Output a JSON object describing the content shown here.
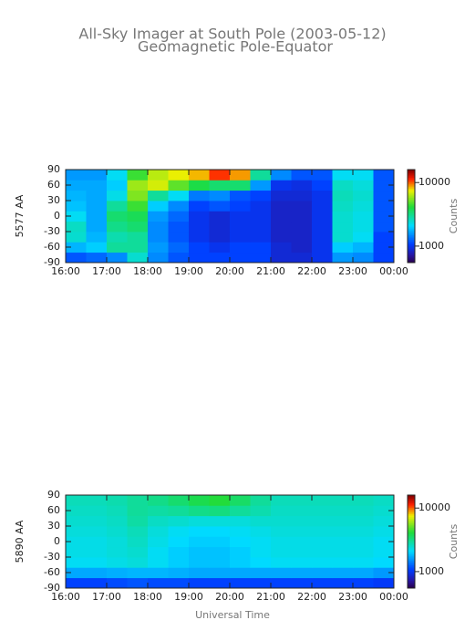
{
  "chart_data": [
    {
      "type": "heatmap",
      "title": "All-Sky Imager at South Pole (2003-05-12)",
      "subtitle": "Geomagnetic Pole-Equator",
      "ylabel": "5577 AA",
      "xlim": [
        16,
        24
      ],
      "ylim": [
        -90,
        90
      ],
      "xticks": [
        {
          "value": 16,
          "label": "16:00"
        },
        {
          "value": 17,
          "label": "17:00"
        },
        {
          "value": 18,
          "label": "18:00"
        },
        {
          "value": 19,
          "label": "19:00"
        },
        {
          "value": 20,
          "label": "20:00"
        },
        {
          "value": 21,
          "label": "21:00"
        },
        {
          "value": 22,
          "label": "22:00"
        },
        {
          "value": 23,
          "label": "23:00"
        },
        {
          "value": 24,
          "label": "00:00"
        }
      ],
      "yticks": [
        -90,
        -60,
        -30,
        0,
        30,
        60,
        90
      ],
      "xbins": [
        16,
        16.5,
        17,
        17.5,
        18,
        18.5,
        19,
        19.5,
        20,
        20.5,
        21,
        21.5,
        22,
        22.5,
        23,
        23.5,
        24
      ],
      "ybins": [
        -90,
        -70,
        -50,
        -30,
        -10,
        10,
        30,
        50,
        70,
        90
      ],
      "z": [
        [
          1200,
          1300,
          1500,
          2500,
          1500,
          1200,
          1100,
          1100,
          1100,
          1100,
          900,
          900,
          1000,
          1600,
          1500,
          1100
        ],
        [
          1800,
          2000,
          3000,
          3000,
          1600,
          1300,
          1100,
          1000,
          1100,
          1100,
          900,
          850,
          1000,
          2000,
          1800,
          1100
        ],
        [
          2500,
          1800,
          2800,
          3000,
          1500,
          1200,
          1000,
          900,
          1000,
          1000,
          850,
          850,
          1000,
          2500,
          2200,
          1100
        ],
        [
          2600,
          1700,
          3200,
          3500,
          1500,
          1200,
          1000,
          900,
          1000,
          1000,
          850,
          850,
          1000,
          2500,
          2300,
          1200
        ],
        [
          2200,
          1700,
          3500,
          3800,
          1600,
          1300,
          1000,
          900,
          1000,
          1000,
          850,
          850,
          1000,
          2500,
          2300,
          1200
        ],
        [
          1900,
          1700,
          3000,
          4500,
          2000,
          1500,
          1100,
          1200,
          1100,
          1000,
          850,
          850,
          1000,
          2600,
          2400,
          1200
        ],
        [
          1800,
          1700,
          2300,
          5500,
          3000,
          2200,
          1400,
          1500,
          1200,
          1100,
          900,
          900,
          1000,
          2700,
          2500,
          1200
        ],
        [
          1700,
          1700,
          2000,
          6000,
          7000,
          5000,
          4000,
          3500,
          3500,
          1600,
          1000,
          950,
          1100,
          2600,
          2400,
          1200
        ],
        [
          1600,
          1600,
          2200,
          4500,
          6500,
          7500,
          8500,
          11000,
          9000,
          3000,
          1500,
          1200,
          1200,
          2200,
          2200,
          1200
        ]
      ],
      "colorbar": {
        "label": "Counts",
        "scale": "log",
        "lim": [
          550,
          16000
        ],
        "ticks": [
          1000,
          10000
        ]
      }
    },
    {
      "type": "heatmap",
      "ylabel": "5890 AA",
      "xlabel": "Universal Time",
      "xlim": [
        16,
        24
      ],
      "ylim": [
        -90,
        90
      ],
      "xticks": [
        {
          "value": 16,
          "label": "16:00"
        },
        {
          "value": 17,
          "label": "17:00"
        },
        {
          "value": 18,
          "label": "18:00"
        },
        {
          "value": 19,
          "label": "19:00"
        },
        {
          "value": 20,
          "label": "20:00"
        },
        {
          "value": 21,
          "label": "21:00"
        },
        {
          "value": 22,
          "label": "22:00"
        },
        {
          "value": 23,
          "label": "23:00"
        },
        {
          "value": 24,
          "label": "00:00"
        }
      ],
      "yticks": [
        -90,
        -60,
        -30,
        0,
        30,
        60,
        90
      ],
      "xbins": [
        16,
        16.5,
        17,
        17.5,
        18,
        18.5,
        19,
        19.5,
        20,
        20.5,
        21,
        21.5,
        22,
        22.5,
        23,
        23.5,
        24
      ],
      "ybins": [
        -90,
        -70,
        -50,
        -30,
        -10,
        10,
        30,
        50,
        70,
        90
      ],
      "z": [
        [
          1100,
          1100,
          1150,
          1200,
          1150,
          1150,
          1100,
          1100,
          1100,
          1100,
          1100,
          1100,
          1100,
          1100,
          1100,
          1050
        ],
        [
          1700,
          1700,
          1750,
          1800,
          1800,
          1750,
          1700,
          1700,
          1700,
          1700,
          1700,
          1700,
          1700,
          1700,
          1700,
          1600
        ],
        [
          2200,
          2200,
          2300,
          2400,
          2200,
          2000,
          1900,
          1900,
          2000,
          2100,
          2200,
          2200,
          2200,
          2200,
          2200,
          2100
        ],
        [
          2300,
          2300,
          2400,
          2500,
          2200,
          2000,
          1900,
          1900,
          2000,
          2200,
          2300,
          2300,
          2300,
          2300,
          2300,
          2200
        ],
        [
          2300,
          2300,
          2400,
          2600,
          2300,
          2100,
          2000,
          2000,
          2100,
          2200,
          2300,
          2300,
          2300,
          2300,
          2300,
          2200
        ],
        [
          2400,
          2400,
          2500,
          2700,
          2400,
          2200,
          2100,
          2100,
          2200,
          2300,
          2400,
          2400,
          2400,
          2400,
          2400,
          2300
        ],
        [
          2500,
          2500,
          2600,
          2900,
          2600,
          2500,
          2400,
          2400,
          2400,
          2500,
          2500,
          2500,
          2500,
          2500,
          2500,
          2400
        ],
        [
          2600,
          2600,
          2700,
          3000,
          2900,
          3000,
          3200,
          3300,
          3000,
          2800,
          2600,
          2600,
          2600,
          2600,
          2600,
          2500
        ],
        [
          2700,
          2700,
          2800,
          3000,
          3200,
          3500,
          3900,
          4200,
          3600,
          3000,
          2700,
          2700,
          2700,
          2700,
          2700,
          2600
        ]
      ],
      "colorbar": {
        "label": "Counts",
        "scale": "log",
        "lim": [
          550,
          16000
        ],
        "ticks": [
          1000,
          10000
        ]
      }
    }
  ]
}
